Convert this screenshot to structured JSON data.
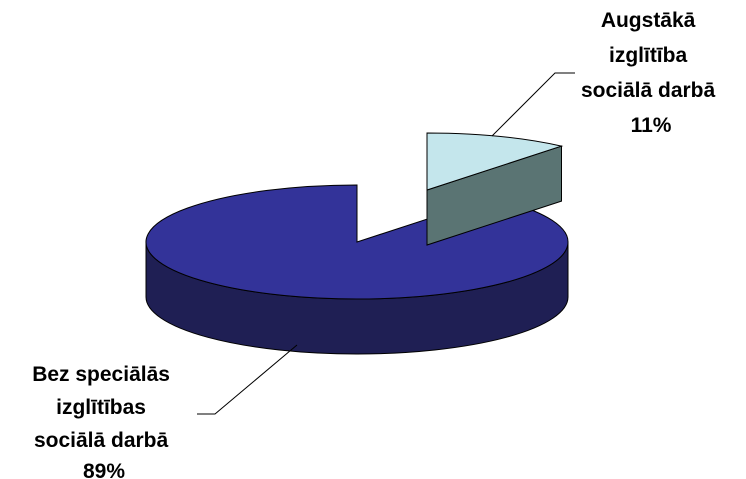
{
  "chart_data": {
    "type": "pie",
    "style": "3d-exploded",
    "slices": [
      {
        "label_lines": [
          "Augstākā",
          "izglītība",
          "sociālā darbā"
        ],
        "value": 11,
        "value_label": "11%",
        "color_top": "#c4e6ec",
        "color_side": "#5a7473"
      },
      {
        "label_lines": [
          "Bez speciālās",
          "izglītības",
          "sociālā darbā"
        ],
        "value": 89,
        "value_label": "89%",
        "color_top": "#333399",
        "color_side": "#1f1f54"
      }
    ]
  }
}
